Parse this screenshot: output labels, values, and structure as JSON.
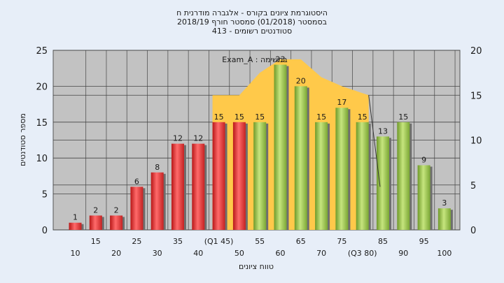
{
  "chart_data": {
    "type": "bar",
    "title": [
      "היסטוגרמת ציונים בקורס - אלגברה מודרנית ח",
      "בסמסטר (01/2018) סמסטר חורף 2018/19",
      "סטודנטים רשומים - 413"
    ],
    "xlabel": "טווח ציונים",
    "ylabel": "מספר סטודנטים",
    "ylim": [
      0,
      25
    ],
    "y_ticks": [
      0,
      5,
      10,
      15,
      20,
      25
    ],
    "y2lim": [
      0,
      20
    ],
    "y2_ticks": [
      0,
      5,
      10,
      15,
      20
    ],
    "grid": true,
    "categories": [
      "10",
      "15",
      "20",
      "25",
      "30",
      "35",
      "40",
      "45",
      "50",
      "55",
      "60",
      "65",
      "70",
      "75",
      "80",
      "85",
      "90",
      "95",
      "100"
    ],
    "x_tick_labels": [
      "10",
      "15",
      "20",
      "25",
      "30",
      "35",
      "40",
      "(Q1 45)",
      "50",
      "55",
      "60",
      "65",
      "70",
      "75",
      "(Q3 80)",
      "85",
      "90",
      "95",
      "100"
    ],
    "values": [
      1,
      2,
      2,
      6,
      8,
      12,
      12,
      15,
      15,
      15,
      23,
      20,
      15,
      17,
      15,
      13,
      15,
      9,
      3
    ],
    "bar_group": [
      "fail",
      "fail",
      "fail",
      "fail",
      "fail",
      "fail",
      "fail",
      "fail",
      "fail",
      "pass",
      "pass",
      "pass",
      "pass",
      "pass",
      "pass",
      "pass",
      "pass",
      "pass",
      "pass"
    ],
    "annotation": "במשימה : Exam_A",
    "band": {
      "from_category": "45",
      "to_category": "80",
      "right_axis_values": [
        15,
        15,
        17.5,
        19,
        19,
        17,
        16,
        15
      ]
    },
    "colors": {
      "fail": "#e23b3b",
      "pass": "#97c44b",
      "band": "#ffc94a",
      "plot_bg": "#c2c2c2",
      "page_bg": "#e7eef8"
    }
  }
}
